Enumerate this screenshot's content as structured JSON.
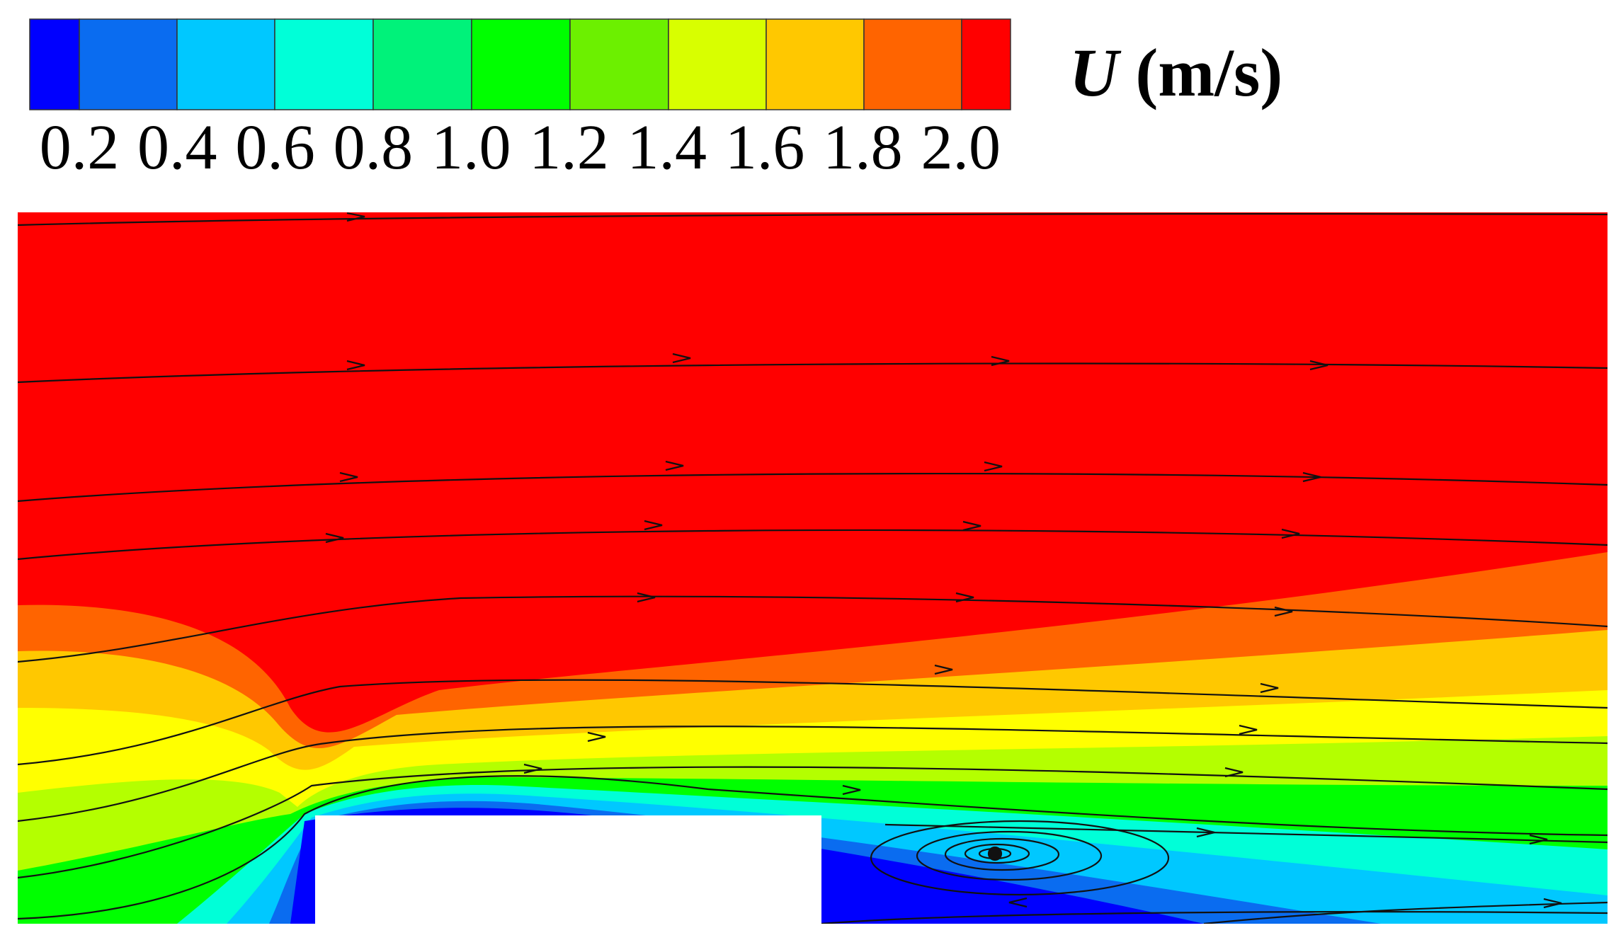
{
  "colorbar": {
    "variable": "U",
    "unit": "(m/s)",
    "colors": [
      "#0000ff",
      "#0a6cf0",
      "#00c8ff",
      "#00ffd8",
      "#00f27a",
      "#00ff00",
      "#6cf000",
      "#d8ff00",
      "#ffc800",
      "#ff6400",
      "#ff0000"
    ],
    "ticks": [
      "0.2",
      "0.4",
      "0.6",
      "0.8",
      "1.0",
      "1.2",
      "1.4",
      "1.6",
      "1.8",
      "2.0"
    ]
  },
  "field": {
    "colors": {
      "high": "#ff0000",
      "orange": "#ff6400",
      "amber": "#ffc800",
      "yellow": "#ffff00",
      "lime": "#b4ff00",
      "green": "#00ff00",
      "aqua": "#00ffd8",
      "sky": "#00c8ff",
      "mid_blue": "#0a6cf0",
      "low": "#0000ff",
      "obstacle": "#ffffff",
      "streamline": "#111111"
    }
  }
}
